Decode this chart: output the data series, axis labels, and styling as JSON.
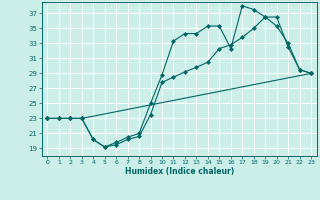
{
  "xlabel": "Humidex (Indice chaleur)",
  "bg_color": "#cceee8",
  "grid_color": "#ffffff",
  "line_color": "#006666",
  "xlim": [
    -0.5,
    23.5
  ],
  "ylim": [
    18.0,
    38.5
  ],
  "xticks": [
    0,
    1,
    2,
    3,
    4,
    5,
    6,
    7,
    8,
    9,
    10,
    11,
    12,
    13,
    14,
    15,
    16,
    17,
    18,
    19,
    20,
    21,
    22,
    23
  ],
  "yticks": [
    19,
    21,
    23,
    25,
    27,
    29,
    31,
    33,
    35,
    37
  ],
  "line1_x": [
    0,
    1,
    2,
    3,
    4,
    5,
    6,
    7,
    8,
    9,
    10,
    11,
    12,
    13,
    14,
    15,
    16,
    17,
    18,
    19,
    20,
    21,
    22,
    23
  ],
  "line1_y": [
    23,
    23,
    23,
    23,
    20.2,
    19.2,
    19.8,
    20.5,
    21.0,
    25.0,
    28.8,
    33.3,
    34.3,
    34.3,
    35.3,
    35.3,
    32.3,
    38.0,
    37.5,
    36.5,
    35.3,
    33.0,
    29.5,
    29.0
  ],
  "line2_x": [
    0,
    1,
    2,
    3,
    4,
    5,
    6,
    7,
    8,
    9,
    10,
    11,
    12,
    13,
    14,
    15,
    16,
    17,
    18,
    19,
    20,
    21,
    22,
    23
  ],
  "line2_y": [
    23,
    23,
    23,
    23,
    20.2,
    19.2,
    19.5,
    20.2,
    20.6,
    23.5,
    27.8,
    28.5,
    29.2,
    29.8,
    30.5,
    32.3,
    32.8,
    33.8,
    35.0,
    36.5,
    36.5,
    32.5,
    29.5,
    29.0
  ],
  "line3_x": [
    0,
    1,
    2,
    3,
    23
  ],
  "line3_y": [
    23,
    23,
    23,
    23,
    29.0
  ]
}
